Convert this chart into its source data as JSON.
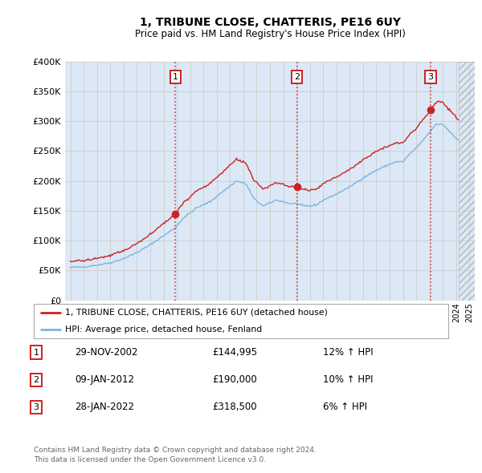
{
  "title": "1, TRIBUNE CLOSE, CHATTERIS, PE16 6UY",
  "subtitle": "Price paid vs. HM Land Registry's House Price Index (HPI)",
  "legend_line1": "1, TRIBUNE CLOSE, CHATTERIS, PE16 6UY (detached house)",
  "legend_line2": "HPI: Average price, detached house, Fenland",
  "footer1": "Contains HM Land Registry data © Crown copyright and database right 2024.",
  "footer2": "This data is licensed under the Open Government Licence v3.0.",
  "sales": [
    {
      "label": "1",
      "date": "29-NOV-2002",
      "price": 144995,
      "price_str": "£144,995",
      "hpi_pct": "12% ↑ HPI",
      "x": 2002.9
    },
    {
      "label": "2",
      "date": "09-JAN-2012",
      "price": 190000,
      "price_str": "£190,000",
      "hpi_pct": "10% ↑ HPI",
      "x": 2012.04
    },
    {
      "label": "3",
      "date": "28-JAN-2022",
      "price": 318500,
      "price_str": "£318,500",
      "hpi_pct": "6% ↑ HPI",
      "x": 2022.08
    }
  ],
  "ylim": [
    0,
    400000
  ],
  "yticks": [
    0,
    50000,
    100000,
    150000,
    200000,
    250000,
    300000,
    350000,
    400000
  ],
  "xlim_start": 1994.6,
  "xlim_end": 2025.4,
  "background_color": "#dce8f5",
  "hpi_color": "#7db4e0",
  "price_color": "#cc2222",
  "vline_color": "#cc2222",
  "grid_color": "#cccccc",
  "hatch_start": 2024.17
}
